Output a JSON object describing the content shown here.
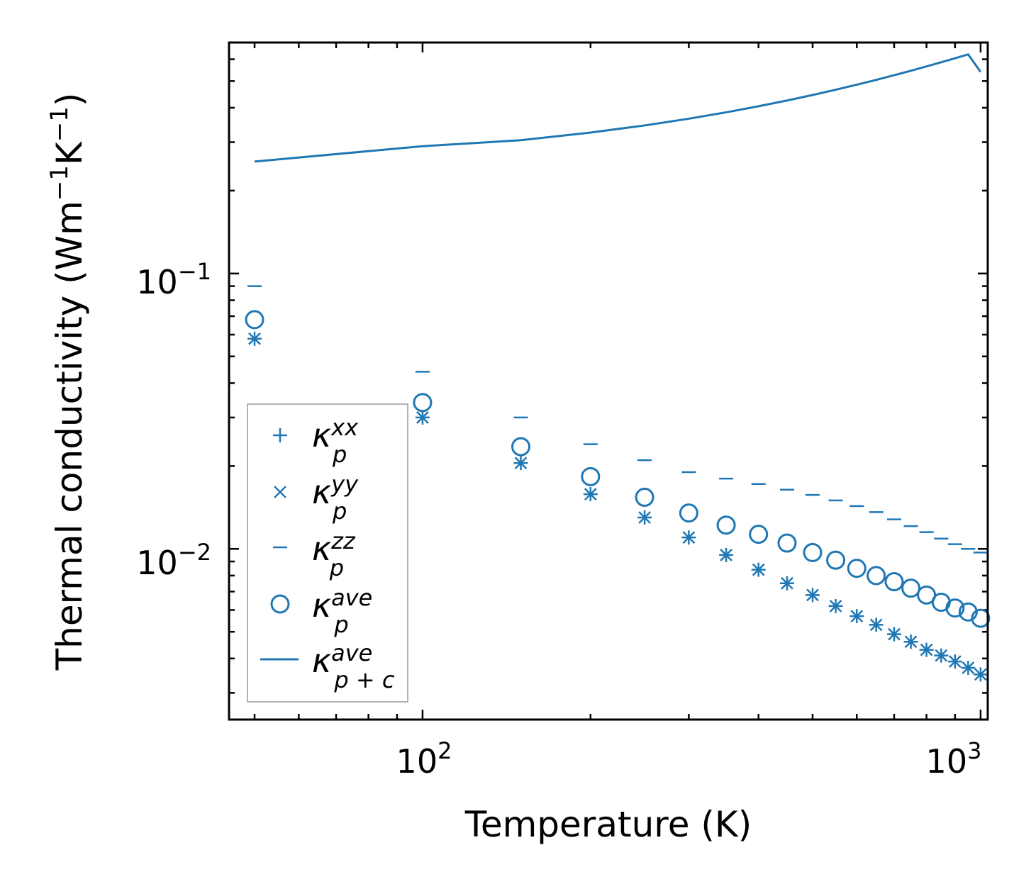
{
  "chart_data": {
    "type": "scatter",
    "xscale": "log",
    "yscale": "log",
    "xlabel": "Temperature (K)",
    "ylabel": "Thermal conductivity (Wm",
    "ylabel_unit_exp1": "−1",
    "ylabel_unit_mid": "K",
    "ylabel_unit_exp2": "−1",
    "ylabel_close": ")",
    "xlim": [
      45,
      1030
    ],
    "ylim": [
      0.0024,
      0.69
    ],
    "x_ticks": [
      {
        "value": 100,
        "base": "10",
        "exp": "2"
      },
      {
        "value": 1000,
        "base": "10",
        "exp": "3"
      }
    ],
    "y_ticks": [
      {
        "value": 0.01,
        "base": "10",
        "exp": "−2"
      },
      {
        "value": 0.1,
        "base": "10",
        "exp": "−1"
      }
    ],
    "color": "#1f77b4",
    "x": [
      50,
      100,
      150,
      200,
      250,
      300,
      350,
      400,
      450,
      500,
      550,
      600,
      650,
      700,
      750,
      800,
      850,
      900,
      950,
      1000
    ],
    "series": [
      {
        "name": "kxx",
        "marker": "plus",
        "legend_base": "κ",
        "legend_sup": "xx",
        "legend_sub": "p",
        "values": [
          0.058,
          0.03,
          0.0205,
          0.0158,
          0.013,
          0.011,
          0.0095,
          0.0084,
          0.0075,
          0.0068,
          0.0062,
          0.0057,
          0.0053,
          0.0049,
          0.0046,
          0.0043,
          0.0041,
          0.0039,
          0.0037,
          0.0035
        ]
      },
      {
        "name": "kyy",
        "marker": "x",
        "legend_base": "κ",
        "legend_sup": "yy",
        "legend_sub": "p",
        "values": [
          0.058,
          0.03,
          0.0205,
          0.0158,
          0.013,
          0.011,
          0.0095,
          0.0084,
          0.0075,
          0.0068,
          0.0062,
          0.0057,
          0.0053,
          0.0049,
          0.0046,
          0.0043,
          0.0041,
          0.0039,
          0.0037,
          0.0035
        ]
      },
      {
        "name": "kzz",
        "marker": "dash",
        "legend_base": "κ",
        "legend_sup": "zz",
        "legend_sub": "p",
        "values": [
          0.09,
          0.044,
          0.03,
          0.024,
          0.021,
          0.019,
          0.018,
          0.0172,
          0.0164,
          0.0157,
          0.015,
          0.0143,
          0.0136,
          0.0128,
          0.0121,
          0.0115,
          0.0109,
          0.0104,
          0.01,
          0.0097
        ]
      },
      {
        "name": "kave",
        "marker": "circle",
        "legend_base": "κ",
        "legend_sup": "ave",
        "legend_sub": "p",
        "values": [
          0.068,
          0.034,
          0.0235,
          0.0183,
          0.0154,
          0.0135,
          0.0122,
          0.0113,
          0.0105,
          0.0097,
          0.0091,
          0.0085,
          0.008,
          0.0076,
          0.0072,
          0.0068,
          0.0064,
          0.0061,
          0.0059,
          0.0056
        ]
      },
      {
        "name": "kave_pc",
        "marker": "line",
        "legend_base": "κ",
        "legend_sup": "ave",
        "legend_sub": "p + c",
        "x": [
          50,
          100,
          150,
          200,
          250,
          300,
          350,
          400,
          450,
          500,
          550,
          600,
          650,
          700,
          750,
          800,
          850,
          900,
          950,
          1000
        ],
        "values": [
          0.255,
          0.29,
          0.305,
          0.325,
          0.345,
          0.365,
          0.385,
          0.405,
          0.425,
          0.445,
          0.465,
          0.485,
          0.505,
          0.525,
          0.545,
          0.565,
          0.585,
          0.605,
          0.625,
          0.54
        ]
      }
    ],
    "legend_position": "lower-left"
  }
}
